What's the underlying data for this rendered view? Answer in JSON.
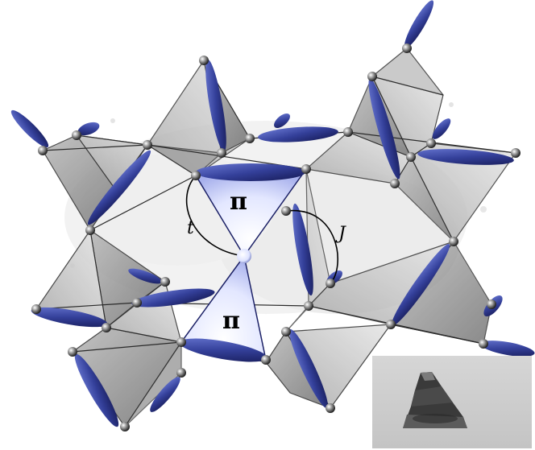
{
  "figure": {
    "triangles": [
      {
        "symbol": "π"
      },
      {
        "symbol": "π"
      }
    ],
    "labels": {
      "hopping": "t",
      "exchange": "J"
    },
    "colors": {
      "orbital": "#3b4aa0",
      "orbital_dark": "#1c2166",
      "octahedron_face": "#cfcfcf",
      "octahedron_edge": "#2a2a2a",
      "pi_triangle_fill": "#dfe4ff",
      "atom": "#555555"
    },
    "inset": {
      "description_icon": "crystal-photo-icon"
    }
  }
}
